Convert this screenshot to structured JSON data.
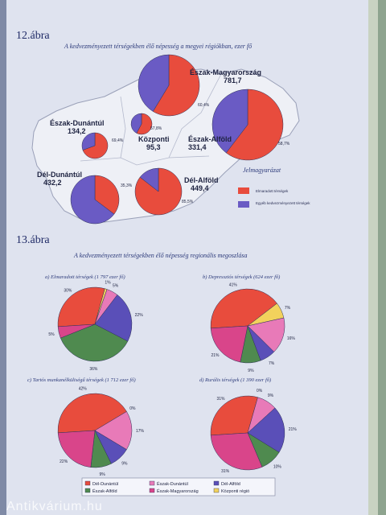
{
  "fig12": {
    "label": "12.ábra",
    "subtitle": "A kedvezményezett térségekben élő népesség a megyei régiókban, ezer fő",
    "legend_title": "Jelmagyarázat",
    "legend": [
      {
        "label": "Elmaradott térségek",
        "color": "#e84c3d"
      },
      {
        "label": "Egyéb kedvezményezett térségek",
        "color": "#6a5bc4"
      }
    ]
  },
  "fig13": {
    "label": "13.ábra",
    "subtitle": "A kedvezményezett térségekben élő népesség regionális megoszlása",
    "legend": [
      {
        "label": "Dél-Dunántúl",
        "color": "#e84c3d"
      },
      {
        "label": "Észak-Dunántúl",
        "color": "#e87ab8"
      },
      {
        "label": "Dél-Alföld",
        "color": "#5a4fb8"
      },
      {
        "label": "Észak-Alföld",
        "color": "#4f8a4f"
      },
      {
        "label": "Észak-Magyarország",
        "color": "#d9458a"
      },
      {
        "label": "Központi régió",
        "color": "#f2d25c"
      }
    ]
  },
  "watermark": "Antikvárium.hu",
  "colors": {
    "primary": "#e84c3d",
    "secondary": "#6a5bc4"
  },
  "chart_data": [
    {
      "type": "pie",
      "title": "A kedvezményezett térségekben élő népesség a megyei régiókban, ezer fő",
      "regions": [
        {
          "name": "Észak-Magyarország",
          "value": "781,7",
          "percent_label": "58,7%",
          "elmaradott": 58.7
        },
        {
          "name": "Észak-Dunántúl",
          "value": "134,2",
          "percent_label": "69,4%",
          "elmaradott": 69.4
        },
        {
          "name": "Központi",
          "value": "95,3",
          "percent_label": "57,8%",
          "elmaradott": 57.8
        },
        {
          "name": "Észak-Alföld",
          "value": "331,4",
          "percent_label": "60,4%",
          "elmaradott": 60.4
        },
        {
          "name": "Dél-Dunántúl",
          "value": "432,2",
          "percent_label": "35,3%",
          "elmaradott": 35.3
        },
        {
          "name": "Dél-Alföld",
          "value": "449,4",
          "percent_label": "85,5%",
          "elmaradott": 85.5
        }
      ]
    },
    {
      "type": "pie",
      "title": "a) Elmaradott térségek (1 797 ezer fő)",
      "values": [
        30,
        1,
        5,
        22,
        36,
        5
      ],
      "labels": [
        "30%",
        "1%",
        "5%",
        "22%",
        "36%",
        "5%"
      ]
    },
    {
      "type": "pie",
      "title": "b) Depressziós térségek (624 ezer fő)",
      "values": [
        41,
        7,
        16,
        7,
        9,
        21
      ],
      "labels": [
        "41%",
        "7%",
        "16%",
        "7%",
        "9%",
        "21%"
      ]
    },
    {
      "type": "pie",
      "title": "c) Tartós munkanélküliségű térségek (1 712 ezer fő)",
      "values": [
        42,
        0,
        17,
        9,
        9,
        22
      ],
      "labels": [
        "42%",
        "0%",
        "17%",
        "9%",
        "9%",
        "22%"
      ]
    },
    {
      "type": "pie",
      "title": "d) Rurális térségek (1 390 ezer fő)",
      "values": [
        31,
        0,
        9,
        21,
        10,
        31
      ],
      "labels": [
        "31%",
        "0%",
        "9%",
        "21%",
        "10%",
        "31%"
      ]
    }
  ]
}
